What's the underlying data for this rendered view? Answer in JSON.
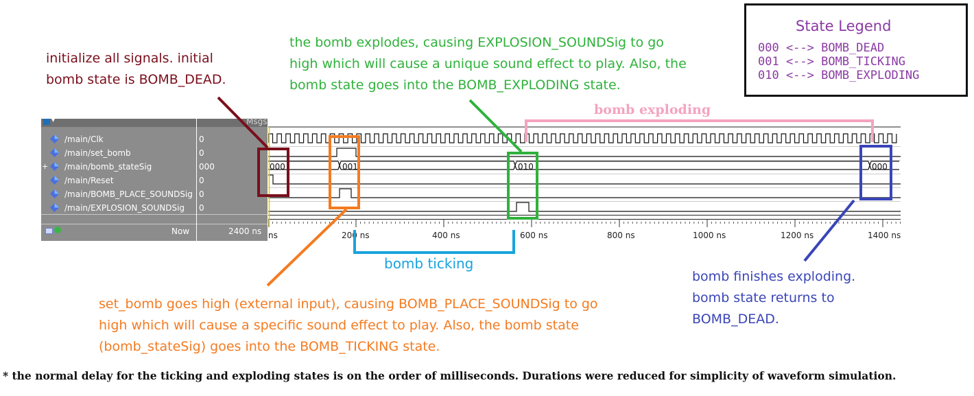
{
  "legend": {
    "title": "State Legend",
    "rows": [
      "000 <--> BOMB_DEAD",
      "001 <--> BOMB_TICKING",
      "010 <--> BOMB_EXPLODING"
    ]
  },
  "annotations": {
    "init": [
      "initialize all signals. initial",
      "bomb state is BOMB_DEAD."
    ],
    "explode": [
      "the bomb explodes, causing EXPLOSION_SOUNDSig to go",
      "high which will cause a unique sound effect to play. Also, the",
      "bomb state goes into the BOMB_EXPLODING state."
    ],
    "set_bomb": [
      "set_bomb goes high (external input), causing BOMB_PLACE_SOUNDSig to go",
      "high which will cause a specific sound effect to play. Also, the bomb state",
      "(bomb_stateSig) goes into the BOMB_TICKING state."
    ],
    "finish": [
      "bomb finishes exploding.",
      "bomb state returns to",
      "BOMB_DEAD."
    ],
    "ticking_span": "bomb ticking",
    "exploding_span": "bomb exploding"
  },
  "waveform": {
    "msgs_label": "Msgs",
    "now_label": "Now",
    "now_value": "2400 ns",
    "signals": [
      {
        "name": "/main/Clk",
        "value": "0"
      },
      {
        "name": "/main/set_bomb",
        "value": "0"
      },
      {
        "name": "/main/bomb_stateSig",
        "value": "000"
      },
      {
        "name": "/main/Reset",
        "value": "0"
      },
      {
        "name": "/main/BOMB_PLACE_SOUNDSig",
        "value": "0"
      },
      {
        "name": "/main/EXPLOSION_SOUNDSig",
        "value": "0"
      }
    ],
    "time_labels": [
      "ns",
      "200 ns",
      "400 ns",
      "600 ns",
      "800 ns",
      "1000 ns",
      "1200 ns",
      "1400 ns"
    ],
    "state_values": [
      "000",
      "001",
      "010",
      "000"
    ]
  },
  "colors": {
    "init": "#7a0f1c",
    "explode": "#2fb23c",
    "set_bomb": "#f47b20",
    "finish": "#3a45b8",
    "ticking": "#1aa3dd",
    "exploding": "#f4a3c0",
    "legend": "#8b3aa3"
  },
  "footnote": "* the normal delay for the ticking and exploding states is on the order of milliseconds. Durations were reduced for simplicity of waveform simulation."
}
